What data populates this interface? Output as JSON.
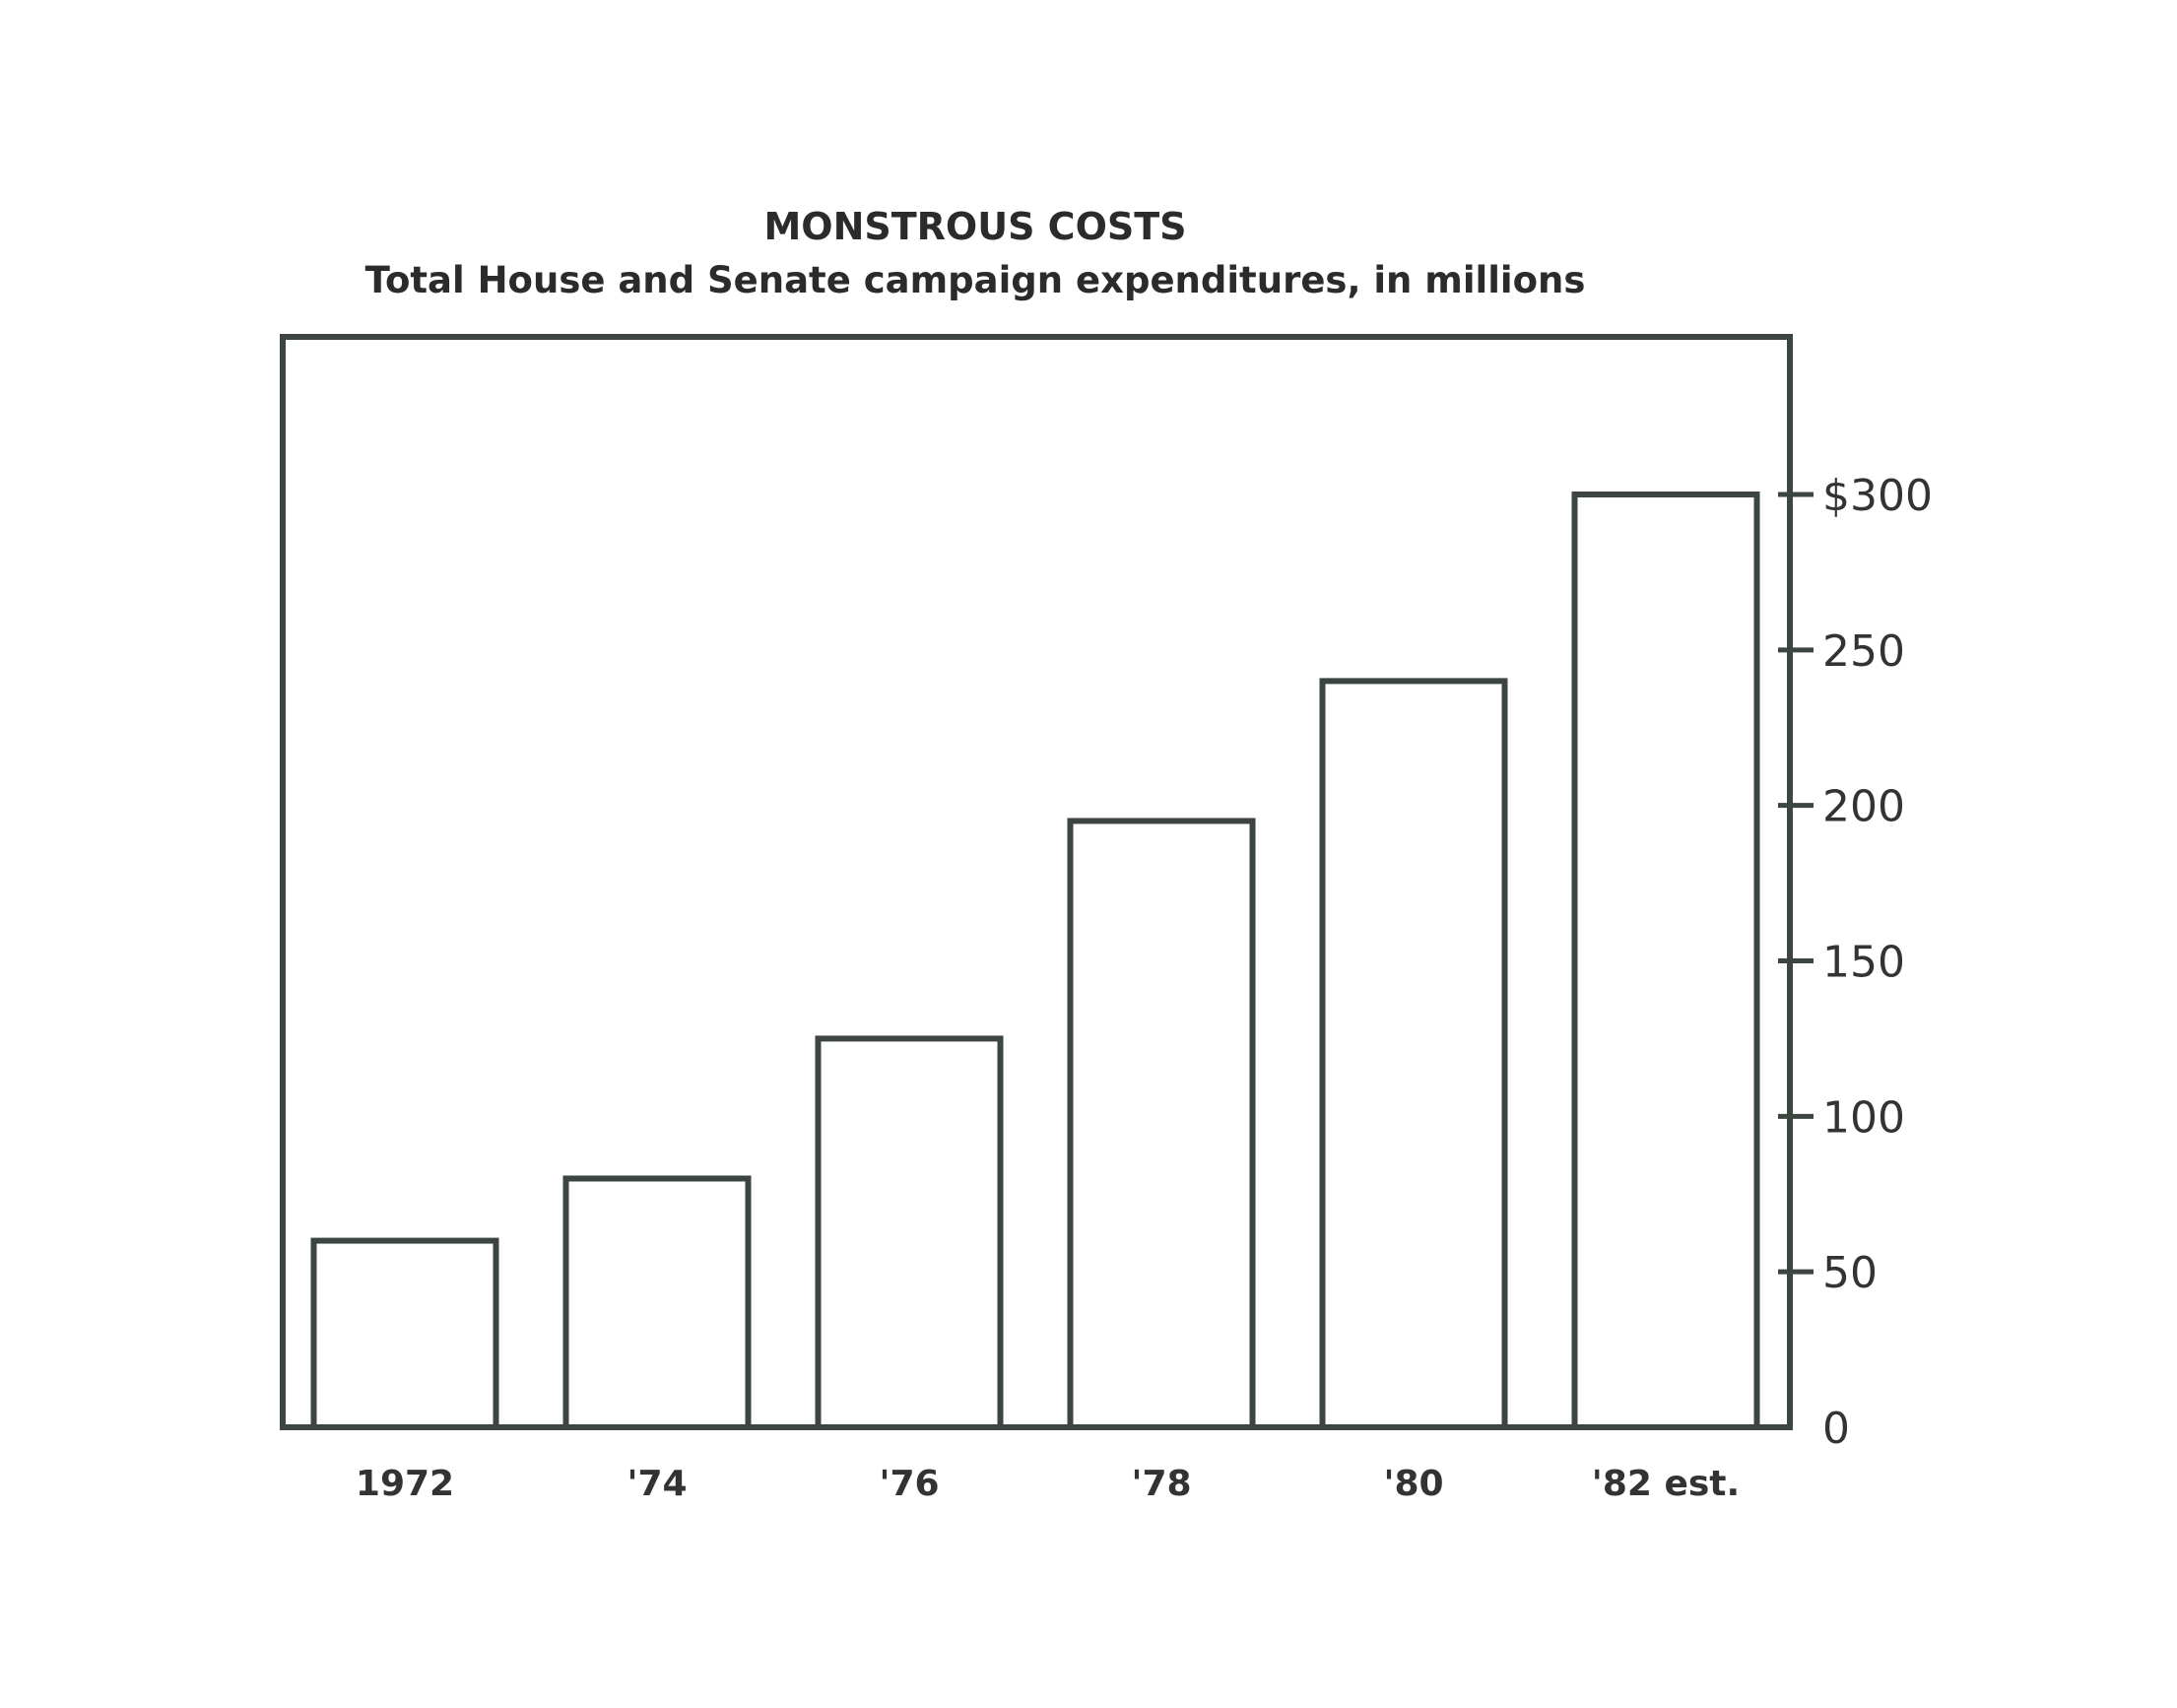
{
  "chart_data": {
    "type": "bar",
    "title": "MONSTROUS COSTS",
    "subtitle": "Total House and Senate campaign expenditures, in millions",
    "categories": [
      "1972",
      "'74",
      "'76",
      "'78",
      "'80",
      "'82 est."
    ],
    "values": [
      60,
      80,
      125,
      195,
      240,
      300
    ],
    "ylim": [
      0,
      350
    ],
    "yticks": [
      0,
      50,
      100,
      150,
      200,
      250,
      300
    ],
    "ytick_labels": [
      "0",
      "50",
      "100",
      "150",
      "200",
      "250",
      "$300"
    ],
    "xlabel": "",
    "ylabel": "",
    "y_axis_side": "right",
    "grid": false,
    "colors": {
      "stroke": "#3c453f",
      "bar_fill": "#ffffff",
      "text": "#333333"
    }
  }
}
